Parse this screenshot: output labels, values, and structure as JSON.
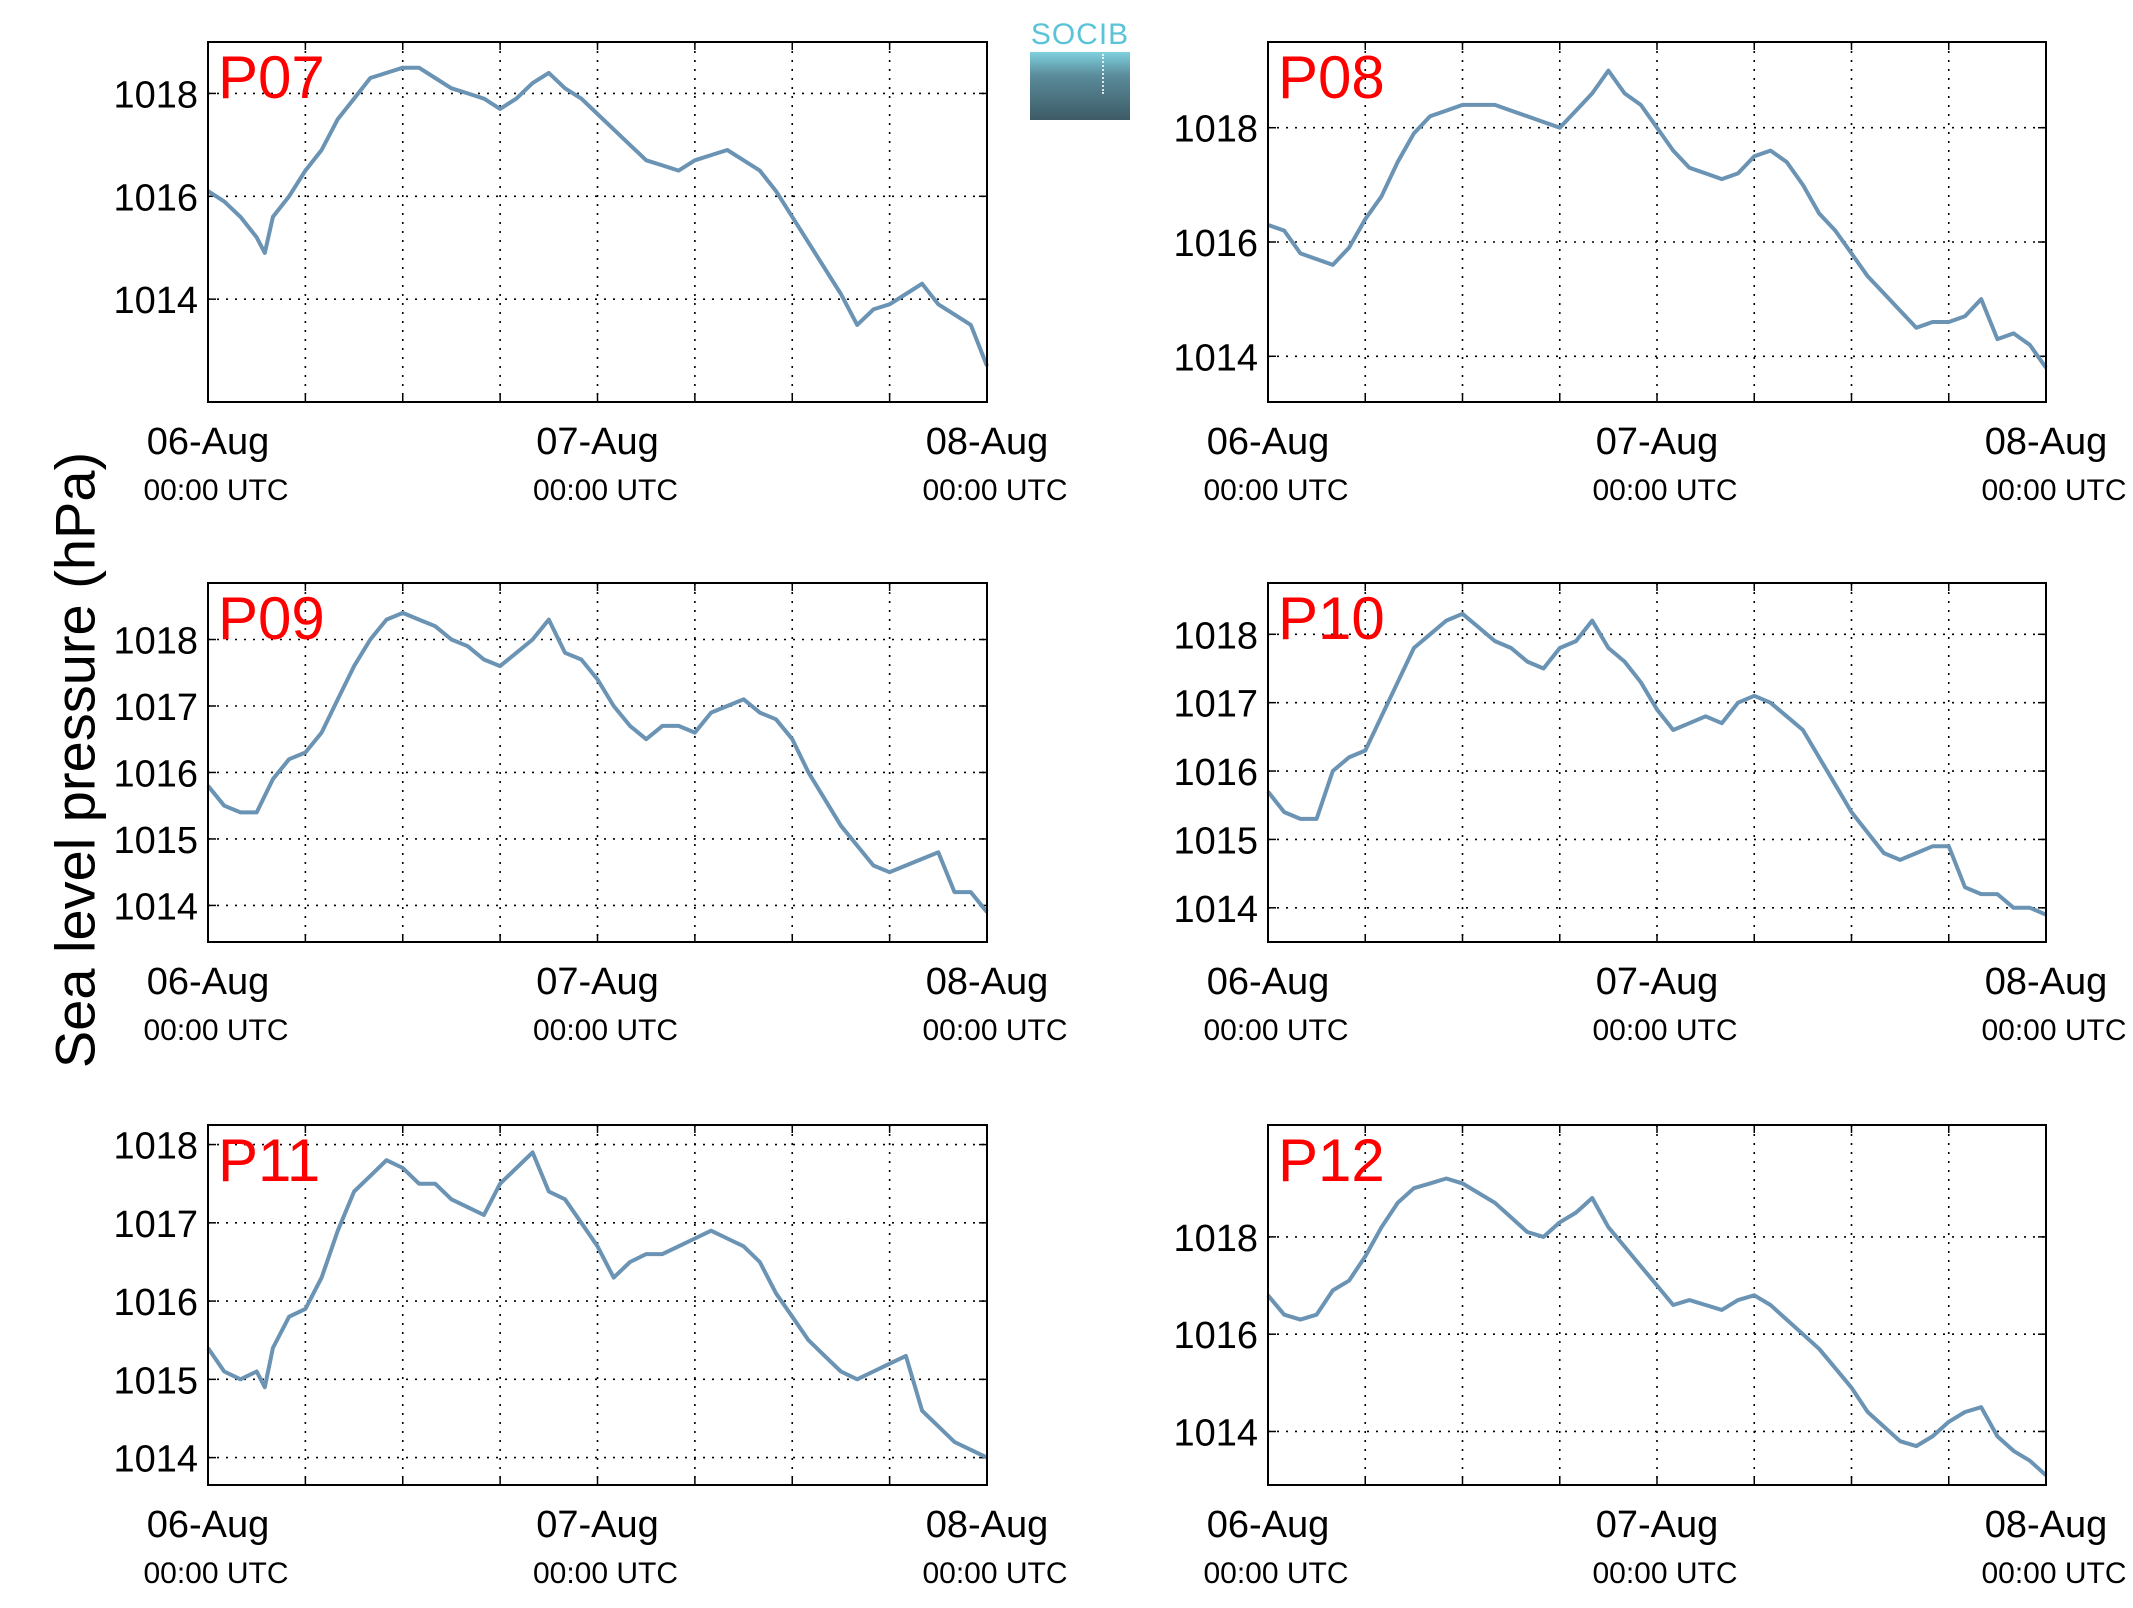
{
  "figure": {
    "ylabel": "Sea level pressure (hPa)",
    "logo_text": "SOCIB",
    "line_color": "#6a93b4",
    "label_color": "#ff0000"
  },
  "chart_data": [
    {
      "type": "line",
      "panel": "P07",
      "title": "P07",
      "x_ticks": [
        "06-Aug",
        "07-Aug",
        "08-Aug"
      ],
      "x_subticks": [
        "00:00 UTC",
        "00:00 UTC",
        "00:00 UTC"
      ],
      "xlim": [
        0,
        48
      ],
      "ylim": [
        1012.0,
        1019.0
      ],
      "yticks": [
        1014,
        1016,
        1018
      ],
      "grid": true,
      "series": [
        {
          "x": [
            0,
            1,
            2,
            3,
            3.5,
            4,
            5,
            6,
            7,
            8,
            9,
            10,
            11,
            12,
            13,
            14,
            15,
            16,
            17,
            18,
            19,
            20,
            21,
            22,
            23,
            24,
            25,
            26,
            27,
            28,
            29,
            30,
            31,
            32,
            33,
            34,
            35,
            36,
            37,
            38,
            39,
            40,
            41,
            42,
            43,
            44,
            45,
            46,
            47,
            48
          ],
          "y": [
            1016.1,
            1015.9,
            1015.6,
            1015.2,
            1014.9,
            1015.6,
            1016.0,
            1016.5,
            1016.9,
            1017.5,
            1017.9,
            1018.3,
            1018.4,
            1018.5,
            1018.5,
            1018.3,
            1018.1,
            1018.0,
            1017.9,
            1017.7,
            1017.9,
            1018.2,
            1018.4,
            1018.1,
            1017.9,
            1017.6,
            1017.3,
            1017.0,
            1016.7,
            1016.6,
            1016.5,
            1016.7,
            1016.8,
            1016.9,
            1016.7,
            1016.5,
            1016.1,
            1015.6,
            1015.1,
            1014.6,
            1014.1,
            1013.5,
            1013.8,
            1013.9,
            1014.1,
            1014.3,
            1013.9,
            1013.7,
            1013.5,
            1012.7
          ]
        }
      ]
    },
    {
      "type": "line",
      "panel": "P08",
      "title": "P08",
      "x_ticks": [
        "06-Aug",
        "07-Aug",
        "08-Aug"
      ],
      "x_subticks": [
        "00:00 UTC",
        "00:00 UTC",
        "00:00 UTC"
      ],
      "xlim": [
        0,
        48
      ],
      "ylim": [
        1013.2,
        1019.5
      ],
      "yticks": [
        1014,
        1016,
        1018
      ],
      "grid": true,
      "series": [
        {
          "x": [
            0,
            1,
            2,
            3,
            4,
            5,
            6,
            7,
            8,
            9,
            10,
            11,
            12,
            13,
            14,
            15,
            16,
            17,
            18,
            19,
            20,
            21,
            22,
            23,
            24,
            25,
            26,
            27,
            28,
            29,
            30,
            31,
            32,
            33,
            34,
            35,
            36,
            37,
            38,
            39,
            40,
            41,
            42,
            43,
            44,
            45,
            46,
            47,
            48
          ],
          "y": [
            1016.3,
            1016.2,
            1015.8,
            1015.7,
            1015.6,
            1015.9,
            1016.4,
            1016.8,
            1017.4,
            1017.9,
            1018.2,
            1018.3,
            1018.4,
            1018.4,
            1018.4,
            1018.3,
            1018.2,
            1018.1,
            1018.0,
            1018.3,
            1018.6,
            1019.0,
            1018.6,
            1018.4,
            1018.0,
            1017.6,
            1017.3,
            1017.2,
            1017.1,
            1017.2,
            1017.5,
            1017.6,
            1017.4,
            1017.0,
            1016.5,
            1016.2,
            1015.8,
            1015.4,
            1015.1,
            1014.8,
            1014.5,
            1014.6,
            1014.6,
            1014.7,
            1015.0,
            1014.3,
            1014.4,
            1014.2,
            1013.8
          ]
        }
      ]
    },
    {
      "type": "line",
      "panel": "P09",
      "title": "P09",
      "x_ticks": [
        "06-Aug",
        "07-Aug",
        "08-Aug"
      ],
      "x_subticks": [
        "00:00 UTC",
        "00:00 UTC",
        "00:00 UTC"
      ],
      "xlim": [
        0,
        48
      ],
      "ylim": [
        1013.45,
        1018.85
      ],
      "yticks": [
        1014,
        1015,
        1016,
        1017,
        1018
      ],
      "grid": true,
      "series": [
        {
          "x": [
            0,
            1,
            2,
            3,
            4,
            5,
            6,
            7,
            8,
            9,
            10,
            11,
            12,
            13,
            14,
            15,
            16,
            17,
            18,
            19,
            20,
            21,
            22,
            23,
            24,
            25,
            26,
            27,
            28,
            29,
            30,
            31,
            32,
            33,
            34,
            35,
            36,
            37,
            38,
            39,
            40,
            41,
            42,
            43,
            44,
            45,
            46,
            47,
            48
          ],
          "y": [
            1015.8,
            1015.5,
            1015.4,
            1015.4,
            1015.9,
            1016.2,
            1016.3,
            1016.6,
            1017.1,
            1017.6,
            1018.0,
            1018.3,
            1018.4,
            1018.3,
            1018.2,
            1018.0,
            1017.9,
            1017.7,
            1017.6,
            1017.8,
            1018.0,
            1018.3,
            1017.8,
            1017.7,
            1017.4,
            1017.0,
            1016.7,
            1016.5,
            1016.7,
            1016.7,
            1016.6,
            1016.9,
            1017.0,
            1017.1,
            1016.9,
            1016.8,
            1016.5,
            1016.0,
            1015.6,
            1015.2,
            1014.9,
            1014.6,
            1014.5,
            1014.6,
            1014.7,
            1014.8,
            1014.2,
            1014.2,
            1013.9
          ]
        }
      ]
    },
    {
      "type": "line",
      "panel": "P10",
      "title": "P10",
      "x_ticks": [
        "06-Aug",
        "07-Aug",
        "08-Aug"
      ],
      "x_subticks": [
        "00:00 UTC",
        "00:00 UTC",
        "00:00 UTC"
      ],
      "xlim": [
        0,
        48
      ],
      "ylim": [
        1013.5,
        1018.75
      ],
      "yticks": [
        1014,
        1015,
        1016,
        1017,
        1018
      ],
      "grid": true,
      "series": [
        {
          "x": [
            0,
            1,
            2,
            3,
            4,
            5,
            6,
            7,
            8,
            9,
            10,
            11,
            12,
            13,
            14,
            15,
            16,
            17,
            18,
            19,
            20,
            21,
            22,
            23,
            24,
            25,
            26,
            27,
            28,
            29,
            30,
            31,
            32,
            33,
            34,
            35,
            36,
            37,
            38,
            39,
            40,
            41,
            42,
            43,
            44,
            45,
            46,
            47,
            48
          ],
          "y": [
            1015.7,
            1015.4,
            1015.3,
            1015.3,
            1016.0,
            1016.2,
            1016.3,
            1016.8,
            1017.3,
            1017.8,
            1018.0,
            1018.2,
            1018.3,
            1018.1,
            1017.9,
            1017.8,
            1017.6,
            1017.5,
            1017.8,
            1017.9,
            1018.2,
            1017.8,
            1017.6,
            1017.3,
            1016.9,
            1016.6,
            1016.7,
            1016.8,
            1016.7,
            1017.0,
            1017.1,
            1017.0,
            1016.8,
            1016.6,
            1016.2,
            1015.8,
            1015.4,
            1015.1,
            1014.8,
            1014.7,
            1014.8,
            1014.9,
            1014.9,
            1014.3,
            1014.2,
            1014.2,
            1014.0,
            1014.0,
            1013.9
          ]
        }
      ]
    },
    {
      "type": "line",
      "panel": "P11",
      "title": "P11",
      "x_ticks": [
        "06-Aug",
        "07-Aug",
        "08-Aug"
      ],
      "x_subticks": [
        "00:00 UTC",
        "00:00 UTC",
        "00:00 UTC"
      ],
      "xlim": [
        0,
        48
      ],
      "ylim": [
        1013.65,
        1018.25
      ],
      "yticks": [
        1014,
        1015,
        1016,
        1017,
        1018
      ],
      "grid": true,
      "series": [
        {
          "x": [
            0,
            1,
            2,
            3,
            3.5,
            4,
            5,
            6,
            7,
            8,
            9,
            10,
            11,
            12,
            13,
            14,
            15,
            16,
            17,
            18,
            19,
            20,
            21,
            22,
            23,
            24,
            25,
            26,
            27,
            28,
            29,
            30,
            31,
            32,
            33,
            34,
            35,
            36,
            37,
            38,
            39,
            40,
            41,
            42,
            43,
            44,
            45,
            46,
            47,
            48
          ],
          "y": [
            1015.4,
            1015.1,
            1015.0,
            1015.1,
            1014.9,
            1015.4,
            1015.8,
            1015.9,
            1016.3,
            1016.9,
            1017.4,
            1017.6,
            1017.8,
            1017.7,
            1017.5,
            1017.5,
            1017.3,
            1017.2,
            1017.1,
            1017.5,
            1017.7,
            1017.9,
            1017.4,
            1017.3,
            1017.0,
            1016.7,
            1016.3,
            1016.5,
            1016.6,
            1016.6,
            1016.7,
            1016.8,
            1016.9,
            1016.8,
            1016.7,
            1016.5,
            1016.1,
            1015.8,
            1015.5,
            1015.3,
            1015.1,
            1015.0,
            1015.1,
            1015.2,
            1015.3,
            1014.6,
            1014.4,
            1014.2,
            1014.1,
            1014.0
          ]
        }
      ]
    },
    {
      "type": "line",
      "panel": "P12",
      "title": "P12",
      "x_ticks": [
        "06-Aug",
        "07-Aug",
        "08-Aug"
      ],
      "x_subticks": [
        "00:00 UTC",
        "00:00 UTC",
        "00:00 UTC"
      ],
      "xlim": [
        0,
        48
      ],
      "ylim": [
        1012.9,
        1020.3
      ],
      "yticks": [
        1014,
        1016,
        1018
      ],
      "grid": true,
      "series": [
        {
          "x": [
            0,
            1,
            2,
            3,
            4,
            5,
            6,
            7,
            8,
            9,
            10,
            11,
            12,
            13,
            14,
            15,
            16,
            17,
            18,
            19,
            20,
            21,
            22,
            23,
            24,
            25,
            26,
            27,
            28,
            29,
            30,
            31,
            32,
            33,
            34,
            35,
            36,
            37,
            38,
            39,
            40,
            41,
            42,
            43,
            44,
            45,
            46,
            47,
            48
          ],
          "y": [
            1016.8,
            1016.4,
            1016.3,
            1016.4,
            1016.9,
            1017.1,
            1017.6,
            1018.2,
            1018.7,
            1019.0,
            1019.1,
            1019.2,
            1019.1,
            1018.9,
            1018.7,
            1018.4,
            1018.1,
            1018.0,
            1018.3,
            1018.5,
            1018.8,
            1018.2,
            1017.8,
            1017.4,
            1017.0,
            1016.6,
            1016.7,
            1016.6,
            1016.5,
            1016.7,
            1016.8,
            1016.6,
            1016.3,
            1016.0,
            1015.7,
            1015.3,
            1014.9,
            1014.4,
            1014.1,
            1013.8,
            1013.7,
            1013.9,
            1014.2,
            1014.4,
            1014.5,
            1013.9,
            1013.6,
            1013.4,
            1013.1
          ]
        }
      ]
    }
  ]
}
